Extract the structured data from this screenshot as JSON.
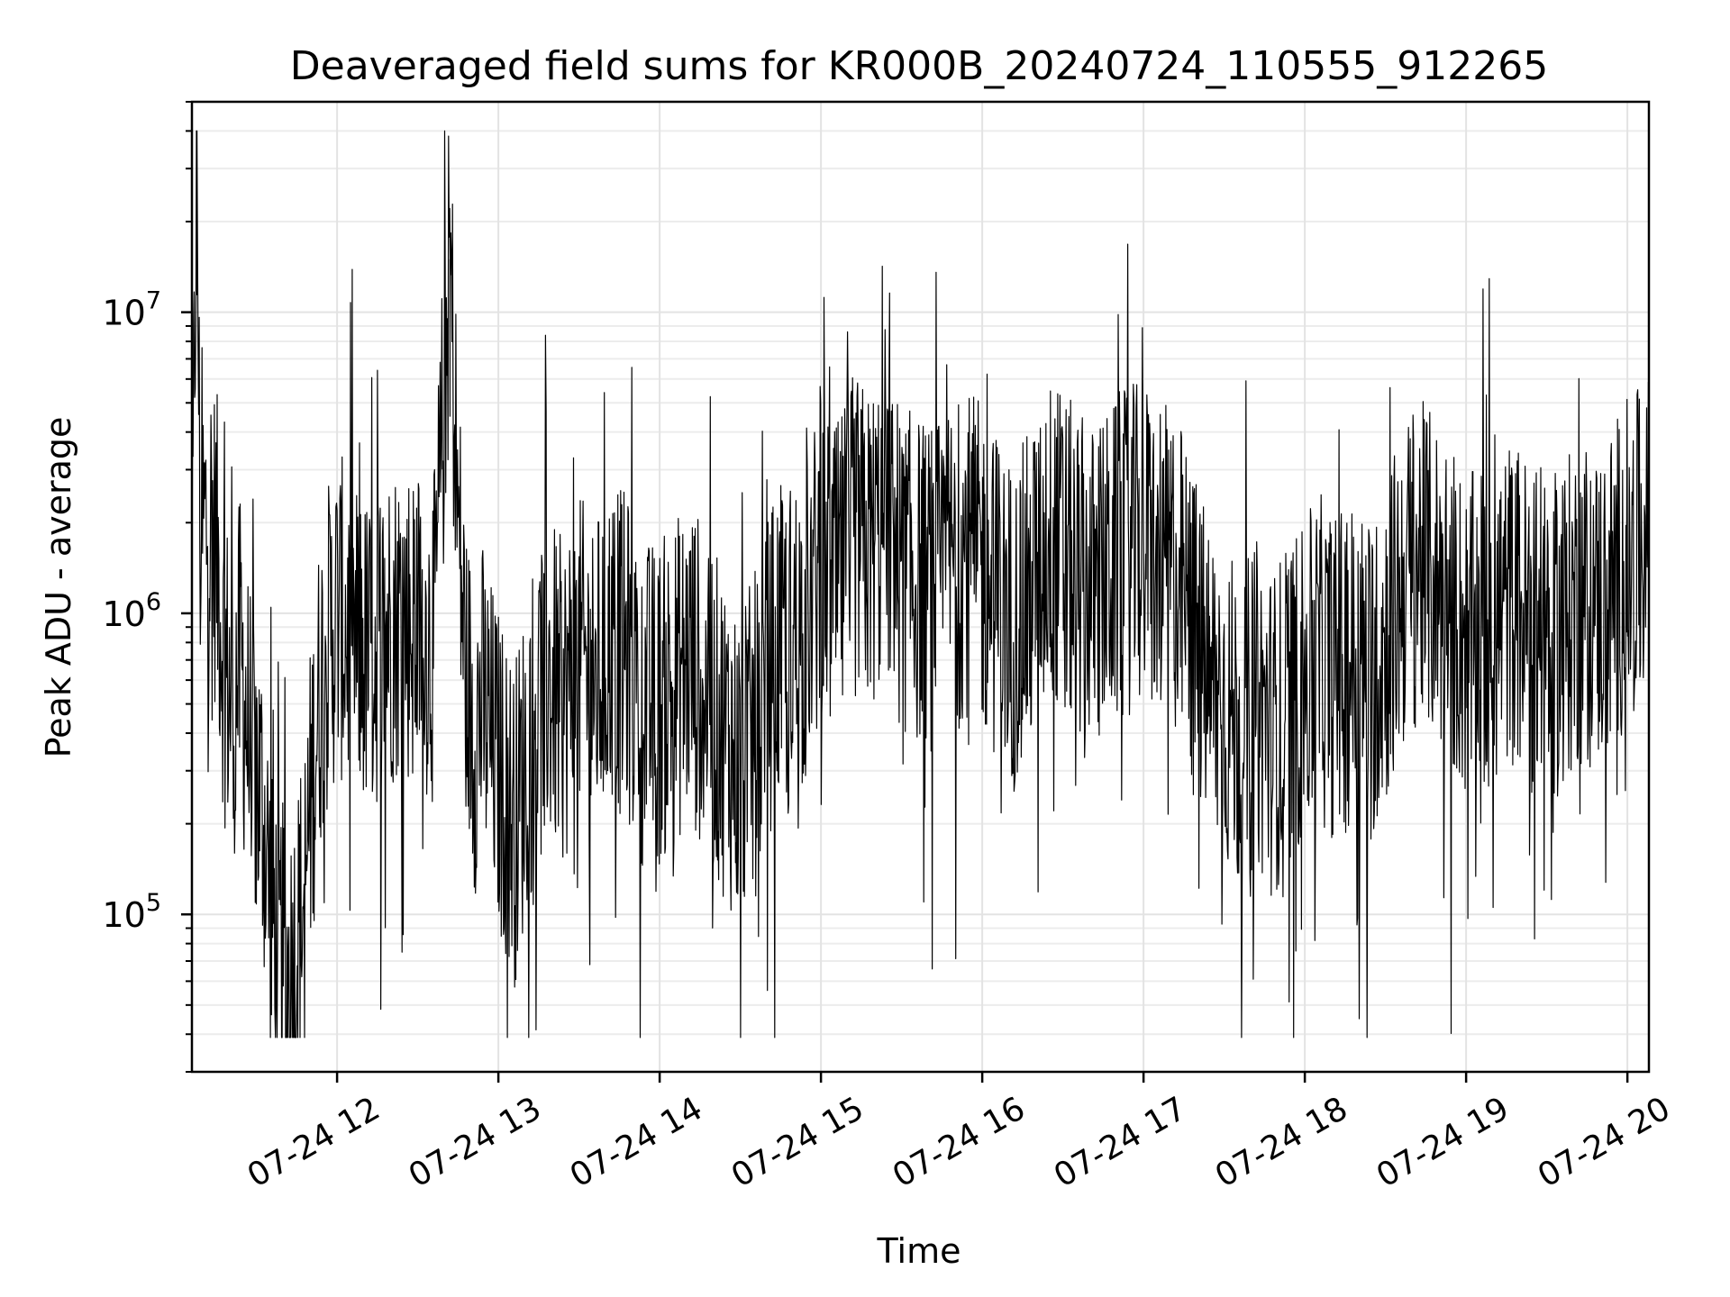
{
  "chart_data": {
    "type": "line",
    "title": "Deaveraged field sums for KR000B_20240724_110555_912265",
    "xlabel": "Time",
    "ylabel": "Peak ADU - average",
    "yscale": "log",
    "xlim": [
      "2024-07-24 11:06",
      "2024-07-24 20:08"
    ],
    "ylim": [
      30000,
      50000000
    ],
    "xtick_labels": [
      "07-24 12",
      "07-24 13",
      "07-24 14",
      "07-24 15",
      "07-24 16",
      "07-24 17",
      "07-24 18",
      "07-24 19",
      "07-24 20"
    ],
    "xtick_hours": [
      12,
      13,
      14,
      15,
      16,
      17,
      18,
      19,
      20
    ],
    "ytick_labels": [
      {
        "base": "10",
        "exp": "5",
        "value": 100000
      },
      {
        "base": "10",
        "exp": "6",
        "value": 1000000
      },
      {
        "base": "10",
        "exp": "7",
        "value": 10000000
      }
    ],
    "grid": true,
    "line_color": "#000000",
    "series": [
      {
        "hours": [
          11.1,
          11.13,
          11.15,
          11.2,
          11.25,
          11.3,
          11.35,
          11.4,
          11.45,
          11.5,
          11.55,
          11.6,
          11.65,
          11.7,
          11.75,
          11.8,
          11.85,
          11.9,
          11.95,
          12.0,
          12.05,
          12.1,
          12.2,
          12.3,
          12.4,
          12.5,
          12.6,
          12.7,
          12.75,
          12.8,
          12.85,
          12.9,
          13.0,
          13.1,
          13.2,
          13.3,
          13.4,
          13.5,
          13.6,
          13.7,
          13.8,
          13.9,
          14.0,
          14.1,
          14.2,
          14.3,
          14.4,
          14.5,
          14.6,
          14.7,
          14.8,
          14.9,
          15.0,
          15.1,
          15.2,
          15.3,
          15.4,
          15.5,
          15.6,
          15.7,
          15.8,
          15.9,
          16.0,
          16.1,
          16.2,
          16.3,
          16.4,
          16.5,
          16.6,
          16.7,
          16.8,
          16.9,
          17.0,
          17.1,
          17.2,
          17.3,
          17.4,
          17.5,
          17.6,
          17.7,
          17.8,
          17.9,
          18.0,
          18.1,
          18.2,
          18.3,
          18.4,
          18.5,
          18.6,
          18.7,
          18.8,
          18.9,
          19.0,
          19.1,
          19.2,
          19.3,
          19.4,
          19.5,
          19.6,
          19.7,
          19.8,
          19.9,
          20.0,
          20.1
        ],
        "values": [
          900000,
          38000000,
          1800000,
          2000000,
          1700000,
          700000,
          500000,
          700000,
          400000,
          300000,
          200000,
          90000,
          70000,
          60000,
          80000,
          120000,
          300000,
          600000,
          800000,
          1000000,
          900000,
          800000,
          700000,
          900000,
          1000000,
          900000,
          800000,
          15000000,
          2000000,
          600000,
          400000,
          500000,
          300000,
          200000,
          400000,
          600000,
          500000,
          700000,
          600000,
          800000,
          700000,
          500000,
          500000,
          600000,
          700000,
          500000,
          400000,
          300000,
          400000,
          700000,
          800000,
          900000,
          1500000,
          1200000,
          1800000,
          1600000,
          2000000,
          1400000,
          1300000,
          1200000,
          1500000,
          1600000,
          1400000,
          1100000,
          900000,
          1200000,
          1800000,
          1600000,
          1300000,
          1200000,
          1400000,
          1600000,
          1700000,
          1500000,
          1400000,
          900000,
          600000,
          500000,
          400000,
          500000,
          400000,
          500000,
          600000,
          700000,
          600000,
          700000,
          600000,
          800000,
          1200000,
          1500000,
          1300000,
          1100000,
          800000,
          900000,
          1000000,
          1100000,
          900000,
          800000,
          900000,
          1100000,
          1000000,
          1200000,
          1500000,
          1600000
        ]
      }
    ]
  }
}
